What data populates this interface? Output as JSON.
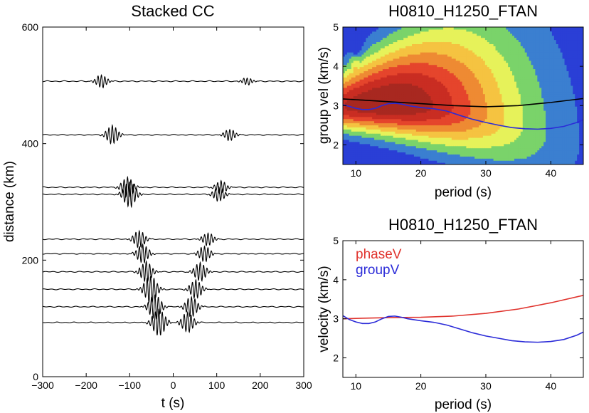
{
  "chart_data": [
    {
      "id": "stacked",
      "type": "line",
      "title": "Stacked CC",
      "xlabel": "t (s)",
      "ylabel": "distance (km)",
      "xlim": [
        -300,
        300
      ],
      "ylim": [
        0,
        600
      ],
      "xticks": [
        -300,
        -200,
        -100,
        0,
        100,
        200,
        300
      ],
      "yticks": [
        0,
        200,
        400,
        600
      ],
      "grid": false,
      "series": [
        {
          "distance": 507,
          "pulses": [
            {
              "t": -165,
              "amp": 9
            },
            {
              "t": 170,
              "amp": 5
            }
          ]
        },
        {
          "distance": 415,
          "pulses": [
            {
              "t": -140,
              "amp": 13
            },
            {
              "t": 130,
              "amp": 8
            }
          ]
        },
        {
          "distance": 325,
          "pulses": [
            {
              "t": -105,
              "amp": 14
            },
            {
              "t": 110,
              "amp": 9
            }
          ]
        },
        {
          "distance": 313,
          "pulses": [
            {
              "t": -100,
              "amp": 18
            },
            {
              "t": 105,
              "amp": 10
            }
          ]
        },
        {
          "distance": 236,
          "pulses": [
            {
              "t": -78,
              "amp": 12
            },
            {
              "t": 80,
              "amp": 9
            }
          ]
        },
        {
          "distance": 211,
          "pulses": [
            {
              "t": -70,
              "amp": 13
            },
            {
              "t": 72,
              "amp": 11
            }
          ]
        },
        {
          "distance": 180,
          "pulses": [
            {
              "t": -62,
              "amp": 14
            },
            {
              "t": 62,
              "amp": 13
            }
          ]
        },
        {
          "distance": 150,
          "pulses": [
            {
              "t": -52,
              "amp": 19
            },
            {
              "t": 52,
              "amp": 13
            }
          ]
        },
        {
          "distance": 120,
          "pulses": [
            {
              "t": -42,
              "amp": 17
            },
            {
              "t": 42,
              "amp": 14
            }
          ]
        },
        {
          "distance": 93,
          "pulses": [
            {
              "t": -33,
              "amp": 19
            },
            {
              "t": 33,
              "amp": 14
            }
          ]
        }
      ]
    },
    {
      "id": "ftan",
      "type": "heatmap",
      "title": "H0810_H1250_FTAN",
      "xlabel": "period (s)",
      "ylabel": "group vel (km/s)",
      "xlim": [
        8,
        45
      ],
      "ylim": [
        1.5,
        5
      ],
      "xticks": [
        10,
        20,
        30,
        40
      ],
      "yticks": [
        2,
        3,
        4,
        5
      ],
      "colors": [
        "#2a3fd6",
        "#3b7fd0",
        "#7ad36a",
        "#e6f25a",
        "#f5c341",
        "#ee8a33",
        "#e5452c",
        "#c92d22",
        "#a82820"
      ],
      "curves": [
        {
          "color": "#000000",
          "x": [
            8,
            10,
            15,
            20,
            25,
            30,
            35,
            40,
            45
          ],
          "y": [
            3.17,
            3.15,
            3.1,
            3.05,
            3.0,
            2.97,
            3.0,
            3.08,
            3.18
          ]
        },
        {
          "color": "#2b2bd8",
          "x": [
            8,
            9,
            10,
            11,
            12,
            13,
            14,
            15,
            16,
            17,
            18,
            20,
            22,
            24,
            26,
            28,
            30,
            32,
            34,
            36,
            38,
            40,
            42,
            44,
            45
          ],
          "y": [
            3.02,
            2.98,
            2.93,
            2.9,
            2.9,
            2.93,
            3.0,
            3.05,
            3.06,
            3.04,
            3.0,
            2.95,
            2.92,
            2.86,
            2.75,
            2.65,
            2.57,
            2.5,
            2.44,
            2.41,
            2.4,
            2.42,
            2.47,
            2.57,
            2.64
          ]
        }
      ]
    },
    {
      "id": "disp",
      "type": "line",
      "title": "H0810_H1250_FTAN",
      "xlabel": "period (s)",
      "ylabel": "velocity (km/s)",
      "xlim": [
        8,
        45
      ],
      "ylim": [
        1.5,
        5
      ],
      "xticks": [
        10,
        20,
        30,
        40
      ],
      "yticks": [
        2,
        3,
        4,
        5
      ],
      "legend": "top-left",
      "series": [
        {
          "name": "phaseV",
          "color": "#e0332d",
          "x": [
            8,
            10,
            15,
            20,
            25,
            30,
            35,
            40,
            45
          ],
          "y": [
            3.0,
            3.01,
            3.03,
            3.04,
            3.07,
            3.14,
            3.25,
            3.41,
            3.6
          ]
        },
        {
          "name": "groupV",
          "color": "#2b2bd8",
          "x": [
            8,
            9,
            10,
            11,
            12,
            13,
            14,
            15,
            16,
            17,
            18,
            20,
            22,
            24,
            26,
            28,
            30,
            32,
            34,
            36,
            38,
            40,
            42,
            44,
            45
          ],
          "y": [
            3.08,
            2.98,
            2.92,
            2.88,
            2.88,
            2.92,
            3.0,
            3.06,
            3.07,
            3.04,
            3.0,
            2.95,
            2.91,
            2.84,
            2.74,
            2.64,
            2.56,
            2.5,
            2.44,
            2.41,
            2.4,
            2.42,
            2.47,
            2.58,
            2.66
          ]
        }
      ]
    }
  ]
}
